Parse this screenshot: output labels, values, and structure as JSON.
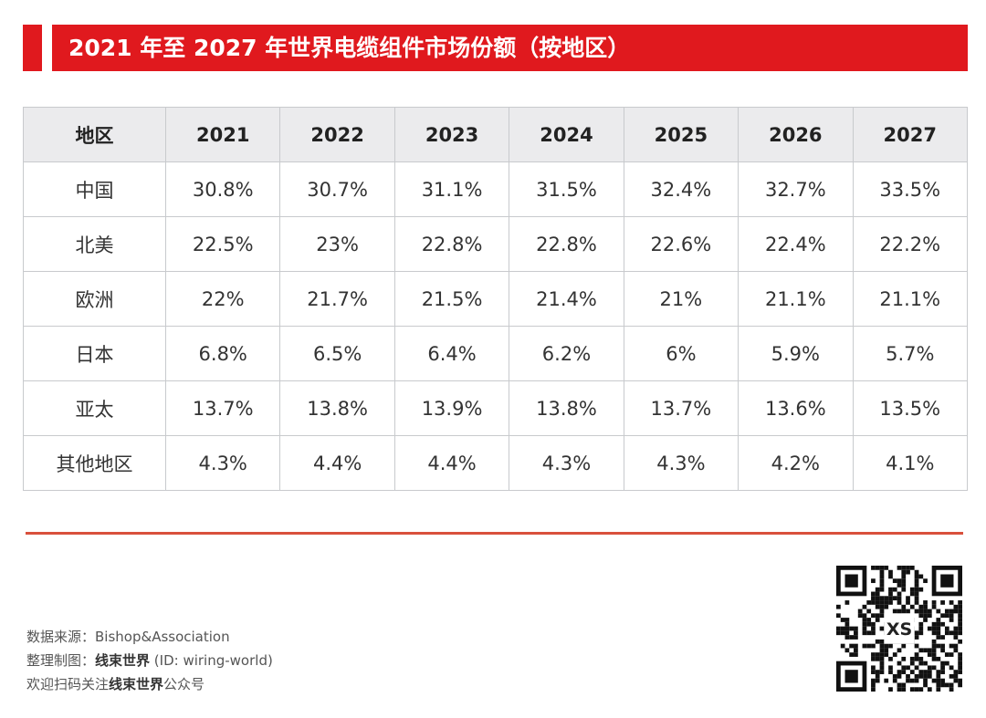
{
  "title": "2021 年至 2027 年世界电缆组件市场份额（按地区）",
  "chart_data": {
    "type": "table",
    "title": "2021 年至 2027 年世界电缆组件市场份额（按地区）",
    "columns": [
      "地区",
      "2021",
      "2022",
      "2023",
      "2024",
      "2025",
      "2026",
      "2027"
    ],
    "rows": [
      [
        "中国",
        "30.8%",
        "30.7%",
        "31.1%",
        "31.5%",
        "32.4%",
        "32.7%",
        "33.5%"
      ],
      [
        "北美",
        "22.5%",
        "23%",
        "22.8%",
        "22.8%",
        "22.6%",
        "22.4%",
        "22.2%"
      ],
      [
        "欧洲",
        "22%",
        "21.7%",
        "21.5%",
        "21.4%",
        "21%",
        "21.1%",
        "21.1%"
      ],
      [
        "日本",
        "6.8%",
        "6.5%",
        "6.4%",
        "6.2%",
        "6%",
        "5.9%",
        "5.7%"
      ],
      [
        "亚太",
        "13.7%",
        "13.8%",
        "13.9%",
        "13.8%",
        "13.7%",
        "13.6%",
        "13.5%"
      ],
      [
        "其他地区",
        "4.3%",
        "4.4%",
        "4.4%",
        "4.3%",
        "4.3%",
        "4.2%",
        "4.1%"
      ]
    ]
  },
  "footer": {
    "source_label": "数据来源：",
    "source": "Bishop&Association",
    "made_label": "整理制图：",
    "made_by": "线束世界",
    "made_id": " (ID: wiring-world)",
    "follow_prefix": "欢迎扫码关注",
    "follow_name": "线束世界",
    "follow_suffix": "公众号"
  },
  "colors": {
    "accent": "#e0191e",
    "header_bg": "#ebebed",
    "rule": "#d9503c"
  },
  "qr_logo_text": "XS"
}
